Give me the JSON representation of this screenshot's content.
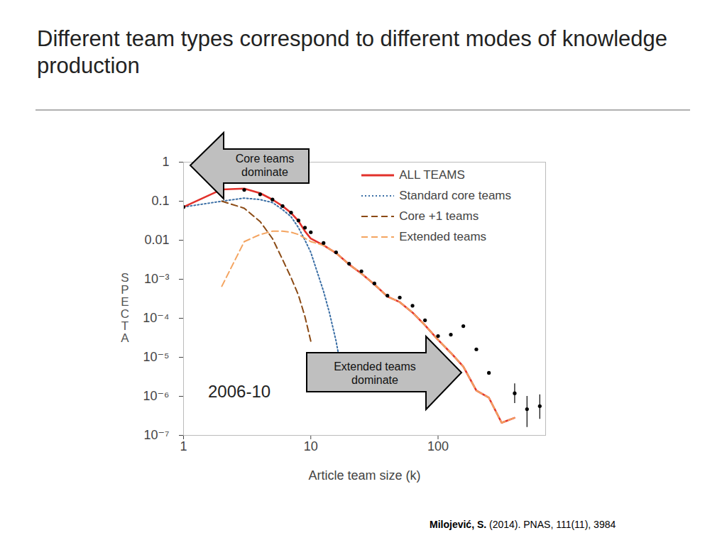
{
  "chart_data": {
    "type": "line",
    "title": "Different team types correspond to different modes of knowledge production",
    "x_label": "Article team size (k)",
    "y_label": "SPECTA",
    "log": true,
    "grid": false,
    "legend": "top-right",
    "xlim": [
      1,
      700
    ],
    "ylim": [
      1e-07,
      1
    ],
    "xticks": [
      1,
      10,
      100
    ],
    "yticks": [
      1,
      0.1,
      0.01,
      {
        "value": 0.001,
        "label": "10⁻³"
      },
      {
        "value": 0.0001,
        "label": "10⁻⁴"
      },
      {
        "value": 1e-05,
        "label": "10⁻⁵"
      },
      {
        "value": 1e-06,
        "label": "10⁻⁶"
      },
      {
        "value": 1e-07,
        "label": "10⁻⁷"
      }
    ],
    "series": [
      {
        "name": "ALL TEAMS",
        "color": "#e2312b",
        "line_style": "solid",
        "x": [
          1,
          2,
          3,
          4,
          5,
          6,
          7,
          8,
          9,
          10,
          12.6,
          15.8,
          20,
          25,
          31.6,
          40,
          50,
          63,
          79,
          100,
          126,
          158,
          200,
          251,
          316,
          398
        ],
        "values": [
          0.071,
          0.2,
          0.21,
          0.16,
          0.11,
          0.075,
          0.05,
          0.031,
          0.017,
          0.011,
          0.0074,
          0.0047,
          0.0024,
          0.0014,
          0.00074,
          0.00036,
          0.00026,
          0.00014,
          6.6e-05,
          2.8e-05,
          1.3e-05,
          5.8e-06,
          1.4e-06,
          9.2e-07,
          2.1e-07,
          2.8e-07
        ]
      },
      {
        "name": "Standard core teams",
        "color": "#3a6ea5",
        "line_style": "dotted",
        "x": [
          1,
          2,
          3,
          4,
          5,
          6,
          7,
          8,
          9,
          10,
          12.6,
          14,
          15.8,
          16.6
        ],
        "values": [
          0.071,
          0.1,
          0.12,
          0.11,
          0.092,
          0.061,
          0.04,
          0.021,
          0.01,
          0.0049,
          0.00049,
          0.00014,
          2.6e-05,
          1.1e-05
        ]
      },
      {
        "name": "Core +1 teams",
        "color": "#8b4a14",
        "line_style": "dashed",
        "x": [
          2,
          3,
          4,
          5,
          6,
          7,
          8,
          9,
          10
        ],
        "values": [
          0.1,
          0.066,
          0.03,
          0.011,
          0.0032,
          0.0011,
          0.00039,
          0.00011,
          2.6e-05
        ]
      },
      {
        "name": "Extended teams",
        "color": "#f4a460",
        "line_style": "dashed",
        "x": [
          2,
          3,
          4,
          5,
          6,
          7,
          8,
          10,
          12.6,
          15.8,
          20,
          25,
          31.6,
          40,
          50,
          63,
          79,
          100,
          126,
          158,
          200,
          251,
          316,
          398
        ],
        "values": [
          0.00066,
          0.0092,
          0.014,
          0.017,
          0.017,
          0.016,
          0.014,
          0.0092,
          0.0074,
          0.0047,
          0.0024,
          0.0014,
          0.00074,
          0.00036,
          0.00026,
          0.00014,
          6.6e-05,
          2.8e-05,
          1.3e-05,
          5.8e-06,
          1.4e-06,
          9.2e-07,
          2.1e-07,
          2.8e-07
        ]
      }
    ],
    "points": {
      "color": "#000000",
      "marker": "circle",
      "x": [
        1,
        3,
        4,
        5,
        6,
        7,
        8,
        9,
        10,
        12.6,
        15.8,
        20,
        25,
        31.6,
        40,
        50,
        63,
        79,
        100,
        126,
        158,
        200,
        251,
        400,
        500,
        630
      ],
      "values": [
        0.071,
        0.195,
        0.15,
        0.11,
        0.075,
        0.051,
        0.032,
        0.021,
        0.016,
        0.0085,
        0.0049,
        0.0025,
        0.0016,
        0.00078,
        0.00038,
        0.00034,
        0.00021,
        8.9e-05,
        3.5e-05,
        3.8e-05,
        6.3e-05,
        1.6e-05,
        4e-06,
        1.2e-06,
        4.7e-07,
        5.6e-07
      ],
      "lower": [
        null,
        null,
        null,
        null,
        null,
        null,
        null,
        null,
        null,
        null,
        null,
        null,
        null,
        null,
        null,
        null,
        null,
        null,
        null,
        null,
        null,
        null,
        null,
        6.6e-07,
        1.6e-07,
        2.6e-07
      ],
      "upper": [
        null,
        null,
        null,
        null,
        null,
        null,
        null,
        null,
        null,
        null,
        null,
        null,
        null,
        null,
        null,
        null,
        null,
        null,
        null,
        null,
        null,
        null,
        null,
        2.1e-06,
        1e-06,
        1.1e-06
      ]
    },
    "annotations": [
      "Core teams dominate",
      "Extended teams dominate",
      "2006-10"
    ],
    "source": "Milojević, S. (2014). PNAS, 111(11), 3984"
  }
}
